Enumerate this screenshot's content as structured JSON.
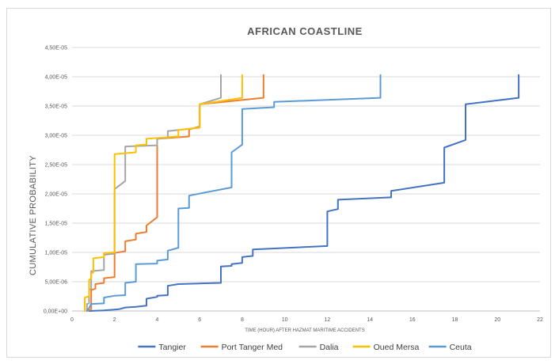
{
  "chart_data": {
    "type": "line",
    "title": "AFRICAN COASTLINE",
    "xlabel": "TIME (HOUR) AFTER HAZMAT MARITIME ACCIDENTS",
    "ylabel": "CUMULATIVE PROBABILITY",
    "xlim": [
      0,
      22
    ],
    "ylim": [
      0,
      4.5e-05
    ],
    "x_ticks": [
      {
        "value": 0,
        "label": "0"
      },
      {
        "value": 2,
        "label": "2"
      },
      {
        "value": 4,
        "label": "4"
      },
      {
        "value": 6,
        "label": "6"
      },
      {
        "value": 8,
        "label": "8"
      },
      {
        "value": 10,
        "label": "10"
      },
      {
        "value": 12,
        "label": "12"
      },
      {
        "value": 14,
        "label": "14"
      },
      {
        "value": 16,
        "label": "16"
      },
      {
        "value": 18,
        "label": "18"
      },
      {
        "value": 20,
        "label": "20"
      },
      {
        "value": 22,
        "label": "22"
      }
    ],
    "y_ticks": [
      {
        "value": 0,
        "label": "0,00E+00"
      },
      {
        "value": 5e-06,
        "label": "5,00E-06"
      },
      {
        "value": 1e-05,
        "label": "1,00E-05"
      },
      {
        "value": 1.5e-05,
        "label": "1,50E-05"
      },
      {
        "value": 2e-05,
        "label": "2,00E-05"
      },
      {
        "value": 2.5e-05,
        "label": "2,50E-05"
      },
      {
        "value": 3e-05,
        "label": "3,00E-05"
      },
      {
        "value": 3.5e-05,
        "label": "3,50E-05"
      },
      {
        "value": 4e-05,
        "label": "4,00E-05"
      },
      {
        "value": 4.5e-05,
        "label": "4,50E-05"
      }
    ],
    "grid": "horizontal",
    "legend_position": "bottom",
    "series": [
      {
        "name": "Tangier",
        "color": "#4472c4",
        "points": [
          [
            0.8,
            0
          ],
          [
            1.5,
            1e-07
          ],
          [
            2.2,
            3e-07
          ],
          [
            2.5,
            6e-07
          ],
          [
            3,
            7e-07
          ],
          [
            3.5,
            9e-07
          ],
          [
            3.5,
            2.1e-06
          ],
          [
            4,
            2.4e-06
          ],
          [
            4,
            2.6e-06
          ],
          [
            4.5,
            2.7e-06
          ],
          [
            4.5,
            4.3e-06
          ],
          [
            5,
            4.6e-06
          ],
          [
            6,
            4.7e-06
          ],
          [
            7,
            4.8e-06
          ],
          [
            7,
            7.6e-06
          ],
          [
            7.5,
            7.7e-06
          ],
          [
            7.5,
            8e-06
          ],
          [
            8,
            8.2e-06
          ],
          [
            8,
            9.2e-06
          ],
          [
            8.5,
            9.4e-06
          ],
          [
            8.5,
            1.05e-05
          ],
          [
            12,
            1.11e-05
          ],
          [
            12,
            1.7e-05
          ],
          [
            12.5,
            1.74e-05
          ],
          [
            12.5,
            1.9e-05
          ],
          [
            15,
            1.94e-05
          ],
          [
            15,
            2.05e-05
          ],
          [
            17.5,
            2.19e-05
          ],
          [
            17.5,
            2.79e-05
          ],
          [
            18.5,
            2.92e-05
          ],
          [
            18.5,
            3.53e-05
          ],
          [
            21,
            3.64e-05
          ],
          [
            21,
            4.03e-05
          ]
        ]
      },
      {
        "name": "Port Tanger Med",
        "color": "#ed7d31",
        "points": [
          [
            0.7,
            0
          ],
          [
            0.9,
            3e-07
          ],
          [
            0.9,
            3.6e-06
          ],
          [
            1.1,
            3.8e-06
          ],
          [
            1.1,
            4.6e-06
          ],
          [
            1.5,
            4.8e-06
          ],
          [
            1.5,
            5.6e-06
          ],
          [
            2,
            5.8e-06
          ],
          [
            2,
            9.9e-06
          ],
          [
            2.5,
            1.02e-05
          ],
          [
            2.5,
            1.19e-05
          ],
          [
            3,
            1.22e-05
          ],
          [
            3,
            1.32e-05
          ],
          [
            3.5,
            1.35e-05
          ],
          [
            3.5,
            1.46e-05
          ],
          [
            4,
            1.6e-05
          ],
          [
            4,
            2.94e-05
          ],
          [
            5.5,
            2.98e-05
          ],
          [
            5.5,
            3.1e-05
          ],
          [
            6,
            3.15e-05
          ],
          [
            6,
            3.53e-05
          ],
          [
            9,
            3.64e-05
          ],
          [
            9,
            4.03e-05
          ]
        ]
      },
      {
        "name": "Dalia",
        "color": "#a5a5a5",
        "points": [
          [
            0.7,
            0
          ],
          [
            0.7,
            1.2e-06
          ],
          [
            0.8,
            1.3e-06
          ],
          [
            0.8,
            3.6e-06
          ],
          [
            0.9,
            3.8e-06
          ],
          [
            0.9,
            6.8e-06
          ],
          [
            1.5,
            7e-06
          ],
          [
            1.5,
            9.6e-06
          ],
          [
            2,
            9.8e-06
          ],
          [
            2,
            2.08e-05
          ],
          [
            2.5,
            2.22e-05
          ],
          [
            2.5,
            2.81e-05
          ],
          [
            4,
            2.83e-05
          ],
          [
            4,
            2.94e-05
          ],
          [
            4.5,
            2.96e-05
          ],
          [
            4.5,
            3.07e-05
          ],
          [
            5,
            3.09e-05
          ],
          [
            6,
            3.13e-05
          ],
          [
            6,
            3.53e-05
          ],
          [
            7,
            3.64e-05
          ],
          [
            7,
            4.03e-05
          ]
        ]
      },
      {
        "name": "Oued Mersa",
        "color": "#ffc000",
        "points": [
          [
            0.6,
            0
          ],
          [
            0.6,
            2.3e-06
          ],
          [
            0.8,
            2.5e-06
          ],
          [
            0.8,
            5.3e-06
          ],
          [
            0.9,
            5.5e-06
          ],
          [
            0.9,
            6.4e-06
          ],
          [
            1,
            6.6e-06
          ],
          [
            1,
            9e-06
          ],
          [
            1.5,
            9.2e-06
          ],
          [
            1.5,
            9.9e-06
          ],
          [
            2,
            1e-05
          ],
          [
            2,
            2.68e-05
          ],
          [
            3,
            2.71e-05
          ],
          [
            3,
            2.83e-05
          ],
          [
            3.5,
            2.84e-05
          ],
          [
            3.5,
            2.94e-05
          ],
          [
            5,
            2.98e-05
          ],
          [
            5,
            3.09e-05
          ],
          [
            6,
            3.13e-05
          ],
          [
            6,
            3.53e-05
          ],
          [
            8,
            3.64e-05
          ],
          [
            8,
            4.03e-05
          ]
        ]
      },
      {
        "name": "Ceuta",
        "color": "#5b9bd5",
        "points": [
          [
            0.7,
            0
          ],
          [
            0.8,
            5e-07
          ],
          [
            0.9,
            1.2e-06
          ],
          [
            1.5,
            1.3e-06
          ],
          [
            1.5,
            2.3e-06
          ],
          [
            2,
            2.6e-06
          ],
          [
            2.5,
            2.7e-06
          ],
          [
            2.5,
            4.8e-06
          ],
          [
            3,
            5e-06
          ],
          [
            3,
            8e-06
          ],
          [
            4,
            8.1e-06
          ],
          [
            4,
            8.6e-06
          ],
          [
            4.5,
            8.8e-06
          ],
          [
            4.5,
            1.03e-05
          ],
          [
            5,
            1.08e-05
          ],
          [
            5,
            1.75e-05
          ],
          [
            5.5,
            1.76e-05
          ],
          [
            5.5,
            1.97e-05
          ],
          [
            7.5,
            2.11e-05
          ],
          [
            7.5,
            2.71e-05
          ],
          [
            8,
            2.84e-05
          ],
          [
            8,
            3.45e-05
          ],
          [
            9.5,
            3.48e-05
          ],
          [
            9.5,
            3.57e-05
          ],
          [
            14.5,
            3.64e-05
          ],
          [
            14.5,
            4.03e-05
          ]
        ]
      }
    ]
  }
}
